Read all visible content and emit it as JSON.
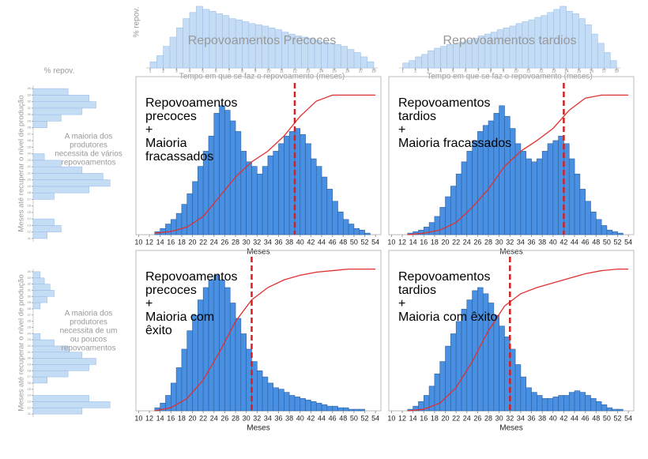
{
  "chart_data": [
    {
      "type": "histogram",
      "orientation": "vertical",
      "annotation": [
        "Repovoamentos Precoces"
      ],
      "xlabel": "Tempo em que se faz o repovoamento (meses)",
      "ylabel": "% repov.",
      "color": "#c5dcf5",
      "edge": "#9dbfe8",
      "bins": [
        1,
        1.5,
        2,
        2.5,
        3,
        3.5,
        4,
        4.5,
        5,
        5.5,
        6,
        6.5,
        7,
        7.5,
        8,
        8.5,
        9,
        9.5,
        10,
        10.5,
        11,
        11.5,
        12,
        12.5,
        13,
        13.5,
        14,
        14.5,
        15,
        15.5,
        16,
        16.5,
        17,
        17.5,
        18
      ],
      "values": [
        10,
        20,
        35,
        50,
        65,
        80,
        90,
        100,
        95,
        92,
        88,
        85,
        80,
        78,
        75,
        72,
        70,
        68,
        65,
        62,
        58,
        55,
        52,
        50,
        48,
        45,
        42,
        40,
        38,
        35,
        30,
        25,
        18,
        10
      ],
      "xlim": [
        0.7,
        18.3
      ],
      "xticks": [
        1,
        2,
        3,
        4,
        5,
        6,
        7,
        8,
        9,
        10,
        11,
        12,
        13,
        14,
        15,
        16,
        17,
        18
      ],
      "ylim": [
        0,
        100
      ]
    },
    {
      "type": "histogram",
      "orientation": "vertical",
      "annotation": [
        "Repovoamentos tardios"
      ],
      "xlabel": "Tempo em que se faz o repovoamento (meses)",
      "color": "#c5dcf5",
      "edge": "#9dbfe8",
      "bins": [
        1,
        1.5,
        2,
        2.5,
        3,
        3.5,
        4,
        4.5,
        5,
        5.5,
        6,
        6.5,
        7,
        7.5,
        8,
        8.5,
        9,
        9.5,
        10,
        10.5,
        11,
        11.5,
        12,
        12.5,
        13,
        13.5,
        14,
        14.5,
        15,
        15.5,
        16,
        16.5,
        17,
        17.5,
        18
      ],
      "values": [
        8,
        12,
        18,
        22,
        28,
        32,
        35,
        38,
        40,
        42,
        45,
        48,
        52,
        55,
        58,
        62,
        65,
        68,
        72,
        75,
        78,
        82,
        85,
        90,
        95,
        100,
        92,
        88,
        80,
        70,
        55,
        40,
        25,
        12
      ],
      "xlim": [
        0.7,
        18.3
      ],
      "xticks": [
        1,
        2,
        3,
        4,
        5,
        6,
        7,
        8,
        9,
        10,
        11,
        12,
        13,
        14,
        15,
        16,
        17,
        18
      ],
      "ylim": [
        0,
        100
      ]
    },
    {
      "type": "histogram",
      "orientation": "horizontal",
      "xlabel": "% repov.",
      "ylabel": "Meses até recuperar o nível de produção",
      "annotation": [
        "A maioria dos",
        "produtores",
        "necessita de vários",
        "repovoamentos"
      ],
      "color": "#c5dcf5",
      "edge": "#9dbfe8",
      "bins": [
        11,
        12,
        13,
        14,
        15,
        16,
        17,
        18,
        19,
        20,
        21,
        22,
        23,
        24,
        25,
        26,
        27,
        28,
        29,
        30,
        31,
        32,
        33,
        34
      ],
      "values": [
        10,
        20,
        15,
        0,
        0,
        0,
        15,
        40,
        55,
        50,
        35,
        20,
        8,
        0,
        0,
        0,
        0,
        10,
        20,
        35,
        45,
        40,
        25
      ],
      "ylim": [
        10.5,
        34.5
      ],
      "yticks": [
        11,
        12,
        13,
        14,
        15,
        16,
        17,
        18,
        19,
        20,
        21,
        22,
        23,
        24,
        25,
        26,
        27,
        28,
        29,
        30,
        31,
        32,
        33,
        34
      ],
      "xlim": [
        0,
        60
      ]
    },
    {
      "type": "histogram",
      "orientation": "horizontal",
      "ylabel": "Meses até recuperar o nível de produção",
      "annotation": [
        "A maioria dos",
        "produtores",
        "necessita de um",
        "ou poucos",
        "repovoamentos"
      ],
      "color": "#c5dcf5",
      "edge": "#9dbfe8",
      "bins": [
        11,
        12,
        13,
        14,
        15,
        16,
        17,
        18,
        19,
        20,
        21,
        22,
        23,
        24,
        25,
        26,
        27,
        28,
        29,
        30,
        31,
        32,
        33,
        34
      ],
      "values": [
        35,
        55,
        40,
        0,
        0,
        10,
        25,
        40,
        45,
        35,
        25,
        15,
        5,
        0,
        0,
        0,
        0,
        5,
        10,
        15,
        12,
        8,
        5
      ],
      "ylim": [
        10.5,
        34.5
      ],
      "yticks": [
        11,
        12,
        13,
        14,
        15,
        16,
        17,
        18,
        19,
        20,
        21,
        22,
        23,
        24,
        25,
        26,
        27,
        28,
        29,
        30,
        31,
        32,
        33,
        34
      ],
      "xlim": [
        0,
        60
      ]
    },
    {
      "type": "histogram",
      "orientation": "vertical",
      "annotation": [
        "Repovoamentos",
        "precoces",
        "+",
        "Maioria",
        "fracassados"
      ],
      "xlabel": "Meses",
      "color": "#4a90e2",
      "edge": "#2a5f9e",
      "bins": [
        13,
        14,
        15,
        16,
        17,
        18,
        19,
        20,
        21,
        22,
        23,
        24,
        25,
        26,
        27,
        28,
        29,
        30,
        31,
        32,
        33,
        34,
        35,
        36,
        37,
        38,
        39,
        40,
        41,
        42,
        43,
        44,
        45,
        46,
        47,
        48,
        49,
        50,
        51,
        52,
        53
      ],
      "values": [
        2,
        4,
        7,
        10,
        14,
        20,
        27,
        35,
        45,
        55,
        65,
        80,
        85,
        82,
        75,
        68,
        55,
        48,
        45,
        40,
        45,
        52,
        55,
        60,
        65,
        68,
        70,
        66,
        60,
        50,
        45,
        38,
        30,
        22,
        15,
        10,
        7,
        4,
        3,
        1
      ],
      "line": {
        "color": "#e03030",
        "x": [
          13,
          16,
          19,
          22,
          25,
          28,
          31,
          34,
          37,
          40,
          43,
          46,
          49,
          52,
          54
        ],
        "values": [
          1,
          2,
          5,
          12,
          25,
          38,
          48,
          55,
          65,
          78,
          88,
          92,
          92,
          92,
          92
        ]
      },
      "vline": 39,
      "xlim": [
        9.5,
        55
      ],
      "xticks": [
        10,
        12,
        14,
        16,
        18,
        20,
        22,
        24,
        26,
        28,
        30,
        32,
        34,
        36,
        38,
        40,
        42,
        44,
        46,
        48,
        50,
        52,
        54
      ],
      "ylim": [
        0,
        100
      ]
    },
    {
      "type": "histogram",
      "orientation": "vertical",
      "annotation": [
        "Repovoamentos",
        "tardios",
        "+",
        "Maioria fracassados"
      ],
      "xlabel": "Meses",
      "color": "#4a90e2",
      "edge": "#2a5f9e",
      "bins": [
        13,
        14,
        15,
        16,
        17,
        18,
        19,
        20,
        21,
        22,
        23,
        24,
        25,
        26,
        27,
        28,
        29,
        30,
        31,
        32,
        33,
        34,
        35,
        36,
        37,
        38,
        39,
        40,
        41,
        42,
        43,
        44,
        45,
        46,
        47,
        48,
        49,
        50,
        51,
        52,
        53
      ],
      "values": [
        1,
        2,
        3,
        5,
        8,
        12,
        18,
        25,
        32,
        40,
        48,
        55,
        62,
        68,
        72,
        75,
        80,
        85,
        78,
        70,
        60,
        55,
        50,
        48,
        50,
        55,
        60,
        62,
        65,
        60,
        50,
        40,
        30,
        22,
        15,
        10,
        6,
        3,
        2,
        1
      ],
      "line": {
        "color": "#e03030",
        "x": [
          13,
          16,
          19,
          22,
          25,
          28,
          31,
          34,
          37,
          40,
          43,
          46,
          49,
          52,
          54
        ],
        "values": [
          0,
          1,
          3,
          8,
          18,
          30,
          45,
          55,
          62,
          70,
          82,
          90,
          92,
          92,
          92
        ]
      },
      "vline": 42,
      "xlim": [
        9.5,
        55
      ],
      "xticks": [
        10,
        12,
        14,
        16,
        18,
        20,
        22,
        24,
        26,
        28,
        30,
        32,
        34,
        36,
        38,
        40,
        42,
        44,
        46,
        48,
        50,
        52,
        54
      ],
      "ylim": [
        0,
        100
      ]
    },
    {
      "type": "histogram",
      "orientation": "vertical",
      "annotation": [
        "Repovoamentos",
        "precoces",
        "+",
        "Maioria com",
        "êxito"
      ],
      "xlabel": "Meses",
      "color": "#4a90e2",
      "edge": "#2a5f9e",
      "bins": [
        13,
        14,
        15,
        16,
        17,
        18,
        19,
        20,
        21,
        22,
        23,
        24,
        25,
        26,
        27,
        28,
        29,
        30,
        31,
        32,
        33,
        34,
        35,
        36,
        37,
        38,
        39,
        40,
        41,
        42,
        43,
        44,
        45,
        46,
        47,
        48,
        49,
        50,
        51,
        52,
        53
      ],
      "values": [
        2,
        5,
        10,
        18,
        28,
        40,
        52,
        62,
        72,
        80,
        85,
        88,
        85,
        80,
        70,
        60,
        50,
        40,
        32,
        26,
        22,
        18,
        15,
        14,
        12,
        10,
        9,
        8,
        7,
        6,
        5,
        4,
        3,
        3,
        2,
        2,
        1,
        1,
        1,
        0
      ],
      "line": {
        "color": "#e03030",
        "x": [
          13,
          16,
          19,
          22,
          25,
          28,
          31,
          34,
          37,
          40,
          43,
          46,
          49,
          52,
          54
        ],
        "values": [
          0,
          2,
          8,
          20,
          38,
          58,
          72,
          80,
          85,
          88,
          90,
          91,
          92,
          92,
          92
        ]
      },
      "vline": 31,
      "xlim": [
        9.5,
        55
      ],
      "xticks": [
        10,
        12,
        14,
        16,
        18,
        20,
        22,
        24,
        26,
        28,
        30,
        32,
        34,
        36,
        38,
        40,
        42,
        44,
        46,
        48,
        50,
        52,
        54
      ],
      "ylim": [
        0,
        100
      ]
    },
    {
      "type": "histogram",
      "orientation": "vertical",
      "annotation": [
        "Repovoamentos",
        "tardios",
        "+",
        "Maioria com êxito"
      ],
      "xlabel": "Meses",
      "color": "#4a90e2",
      "edge": "#2a5f9e",
      "bins": [
        13,
        14,
        15,
        16,
        17,
        18,
        19,
        20,
        21,
        22,
        23,
        24,
        25,
        26,
        27,
        28,
        29,
        30,
        31,
        32,
        33,
        34,
        35,
        36,
        37,
        38,
        39,
        40,
        41,
        42,
        43,
        44,
        45,
        46,
        47,
        48,
        49,
        50,
        51,
        52,
        53
      ],
      "values": [
        1,
        3,
        6,
        10,
        16,
        24,
        32,
        42,
        50,
        58,
        66,
        72,
        78,
        80,
        76,
        70,
        62,
        55,
        48,
        40,
        30,
        22,
        15,
        12,
        10,
        8,
        8,
        9,
        10,
        10,
        12,
        13,
        12,
        10,
        8,
        6,
        4,
        2,
        1,
        1
      ],
      "line": {
        "color": "#e03030",
        "x": [
          13,
          16,
          19,
          22,
          25,
          28,
          31,
          34,
          37,
          40,
          43,
          46,
          49,
          52,
          54
        ],
        "values": [
          0,
          1,
          5,
          15,
          32,
          52,
          68,
          76,
          80,
          83,
          86,
          89,
          91,
          92,
          92
        ]
      },
      "vline": 32,
      "xlim": [
        9.5,
        55
      ],
      "xticks": [
        10,
        12,
        14,
        16,
        18,
        20,
        22,
        24,
        26,
        28,
        30,
        32,
        34,
        36,
        38,
        40,
        42,
        44,
        46,
        48,
        50,
        52,
        54
      ],
      "ylim": [
        0,
        100
      ]
    }
  ]
}
